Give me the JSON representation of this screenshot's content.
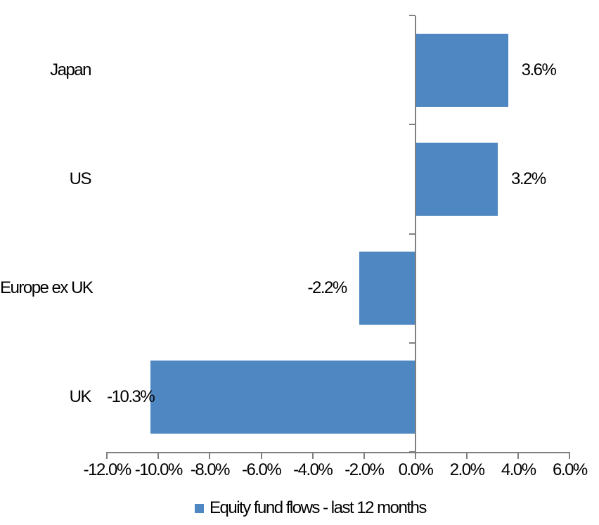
{
  "chart_data": {
    "type": "bar",
    "orientation": "horizontal",
    "title": "",
    "categories": [
      "Japan",
      "US",
      "Europe ex UK",
      "UK"
    ],
    "series": [
      {
        "name": "Equity fund flows - last 12 months",
        "values": [
          3.6,
          3.2,
          -2.2,
          -10.3
        ]
      }
    ],
    "data_labels": [
      "3.6%",
      "3.2%",
      "-2.2%",
      "-10.3%"
    ],
    "xlim": [
      -12,
      6
    ],
    "x_ticks": [
      -12,
      -10,
      -8,
      -6,
      -4,
      -2,
      0,
      2,
      4,
      6
    ],
    "x_tick_labels": [
      "-12.0%",
      "-10.0%",
      "-8.0%",
      "-6.0%",
      "-4.0%",
      "-2.0%",
      "0.0%",
      "2.0%",
      "4.0%",
      "6.0%"
    ],
    "grid": false,
    "legend_position": "bottom",
    "colors": {
      "bar": "#4E87C1",
      "axis": "#808080",
      "text": "#000000",
      "background": "#FFFFFF"
    }
  }
}
